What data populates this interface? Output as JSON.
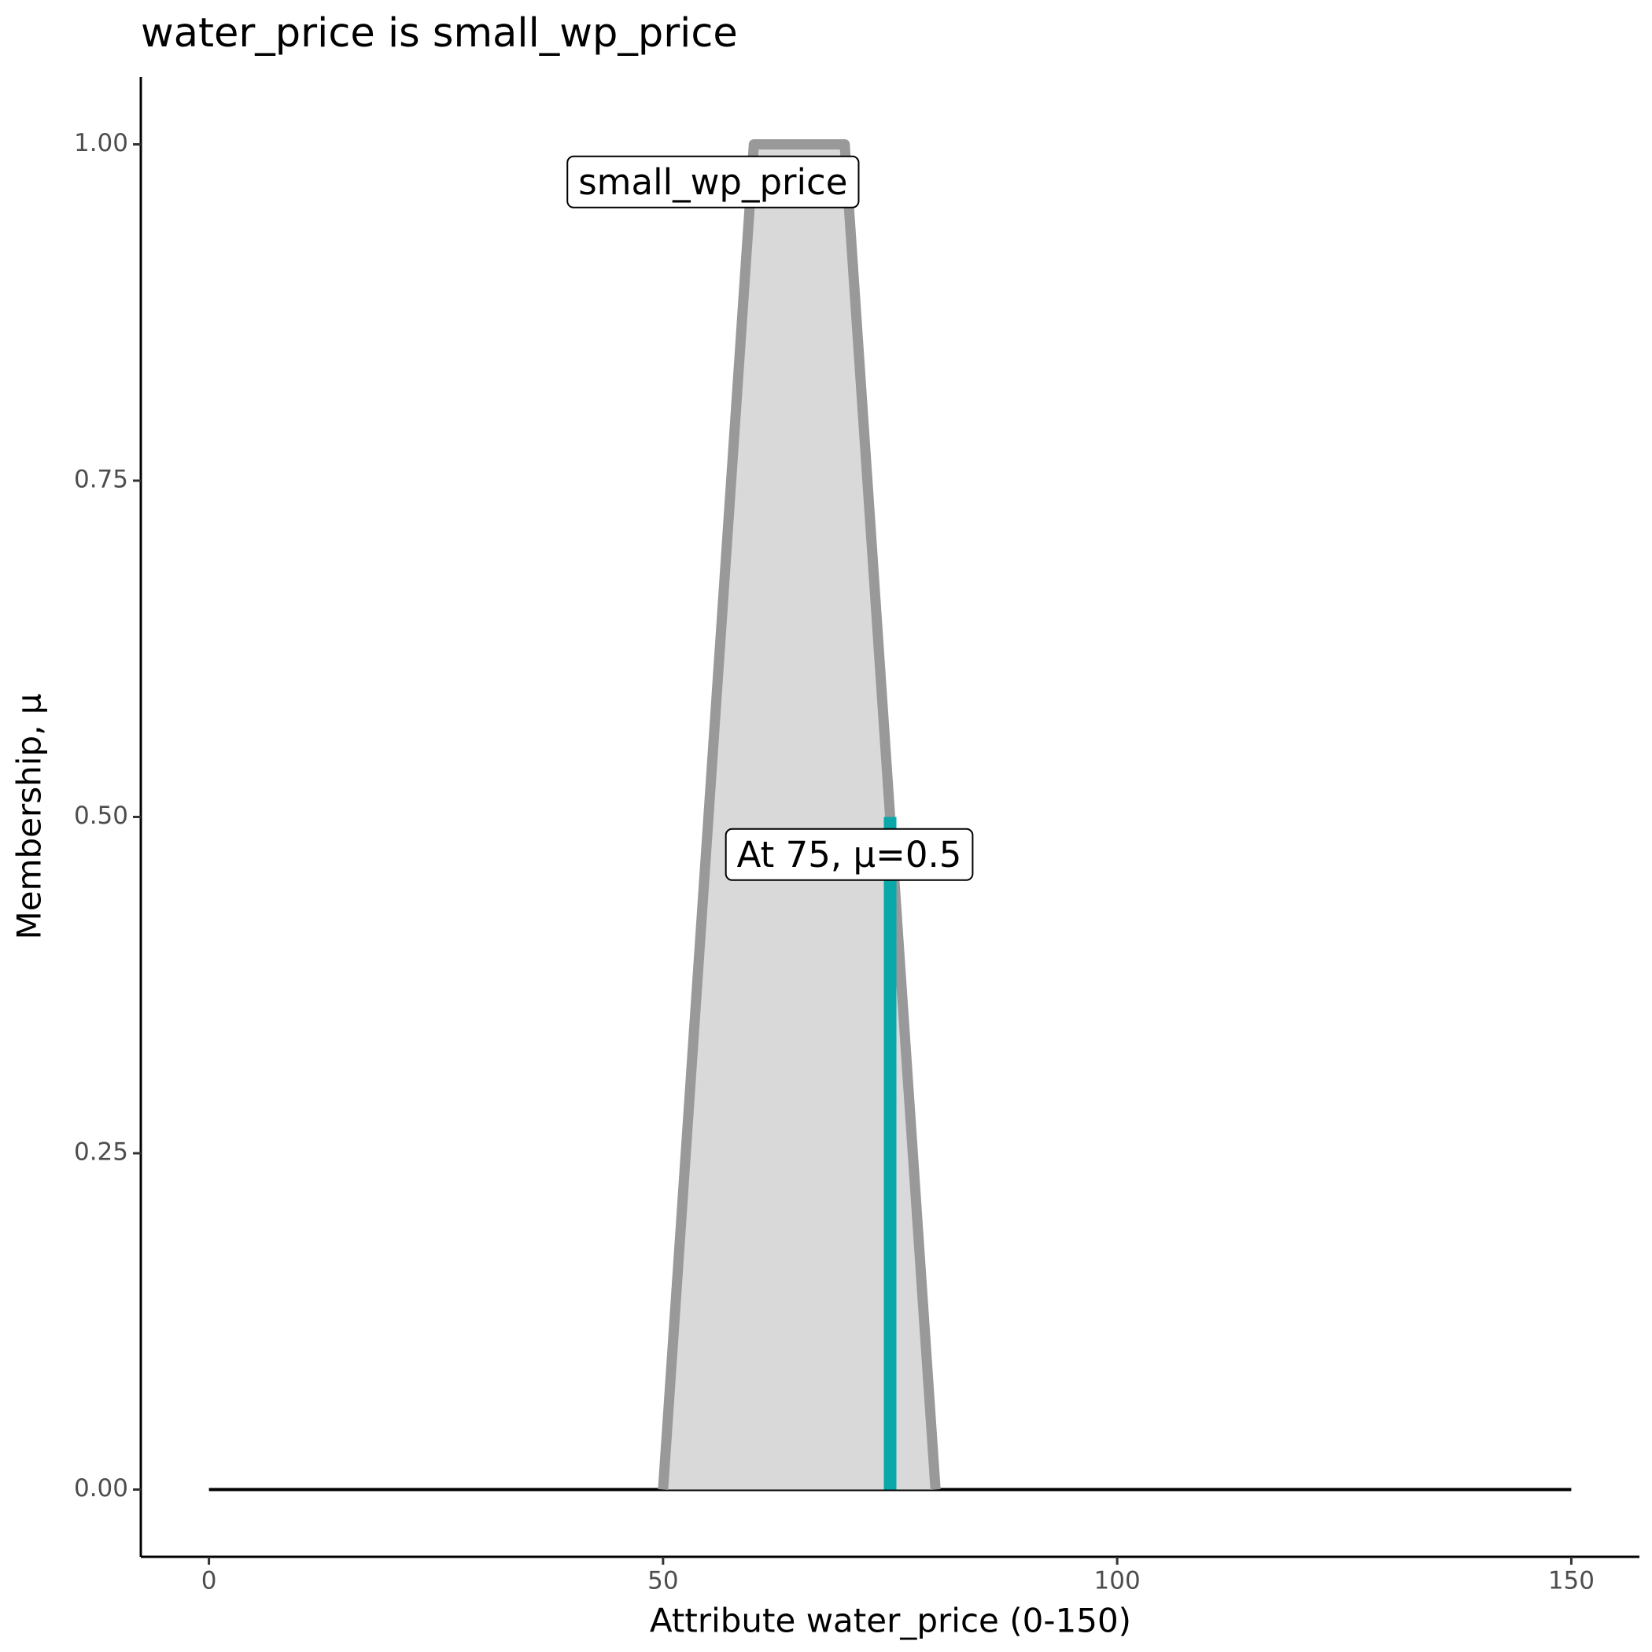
{
  "chart_data": {
    "type": "membership",
    "title": "water_price is small_wp_price",
    "x_label": "Attribute water_price (0-150)",
    "y_label": "Membership, μ",
    "xlim": [
      -7.5,
      157.5
    ],
    "ylim": [
      -0.05,
      1.05
    ],
    "xticks": [
      0,
      50,
      100,
      150
    ],
    "yticks": [
      {
        "value": 0,
        "label": "0.00"
      },
      0.25,
      {
        "value": 0.5,
        "label": "0.50"
      },
      0.75,
      {
        "value": 1,
        "label": "1.00"
      }
    ],
    "series": [
      {
        "name": "small_wp_price",
        "color": "#999999",
        "fill": "#d9d9d9",
        "x": [
          50,
          60,
          70,
          80
        ],
        "values": [
          0,
          1,
          1,
          0
        ],
        "label_position": [
          55.5,
          0.97
        ]
      }
    ],
    "baseline": {
      "x": [
        0,
        150
      ],
      "values": [
        0,
        0
      ],
      "color": "#000000"
    },
    "marker": {
      "x": 75,
      "value": 0.5,
      "color": "#0aa8a8",
      "label": "At 75, μ=0.5",
      "label_position": [
        70.5,
        0.47
      ]
    }
  }
}
